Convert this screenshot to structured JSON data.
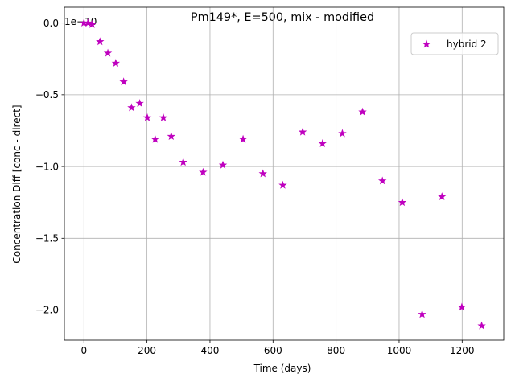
{
  "chart_data": {
    "type": "scatter",
    "title": "Pm149*, E=500, mix - modified",
    "xlabel": "Time (days)",
    "ylabel": "Concentration Diff [conc - direct]",
    "y_offset_label": "1e−10",
    "xlim": [
      -62,
      1332
    ],
    "ylim": [
      -2.21,
      0.11
    ],
    "x_ticks": [
      0,
      200,
      400,
      600,
      800,
      1000,
      1200
    ],
    "x_tick_labels": [
      "0",
      "200",
      "400",
      "600",
      "800",
      "1000",
      "1200"
    ],
    "y_ticks": [
      0.0,
      -0.5,
      -1.0,
      -1.5,
      -2.0
    ],
    "y_tick_labels": [
      "0.0",
      "−0.5",
      "−1.0",
      "−1.5",
      "−2.0"
    ],
    "grid": true,
    "legend_position": "top-right",
    "series": [
      {
        "name": "hybrid 2",
        "marker": "star",
        "color": "#bf00bf",
        "points": [
          {
            "x": 0,
            "y": 0.0
          },
          {
            "x": 13,
            "y": 0.0
          },
          {
            "x": 26,
            "y": -0.01
          },
          {
            "x": 51,
            "y": -0.13
          },
          {
            "x": 76,
            "y": -0.21
          },
          {
            "x": 101,
            "y": -0.28
          },
          {
            "x": 126,
            "y": -0.41
          },
          {
            "x": 151,
            "y": -0.59
          },
          {
            "x": 177,
            "y": -0.56
          },
          {
            "x": 201,
            "y": -0.66
          },
          {
            "x": 226,
            "y": -0.81
          },
          {
            "x": 252,
            "y": -0.66
          },
          {
            "x": 277,
            "y": -0.79
          },
          {
            "x": 315,
            "y": -0.97
          },
          {
            "x": 378,
            "y": -1.04
          },
          {
            "x": 441,
            "y": -0.99
          },
          {
            "x": 505,
            "y": -0.81
          },
          {
            "x": 568,
            "y": -1.05
          },
          {
            "x": 631,
            "y": -1.13
          },
          {
            "x": 694,
            "y": -0.76
          },
          {
            "x": 757,
            "y": -0.84
          },
          {
            "x": 820,
            "y": -0.77
          },
          {
            "x": 884,
            "y": -0.62
          },
          {
            "x": 947,
            "y": -1.1
          },
          {
            "x": 1010,
            "y": -1.25
          },
          {
            "x": 1073,
            "y": -2.03
          },
          {
            "x": 1136,
            "y": -1.21
          },
          {
            "x": 1199,
            "y": -1.98
          },
          {
            "x": 1262,
            "y": -2.11
          }
        ]
      }
    ]
  }
}
